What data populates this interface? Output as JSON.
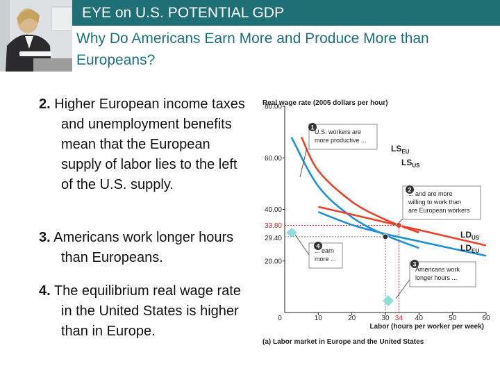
{
  "header": {
    "title": "EYE on U.S. POTENTIAL GDP"
  },
  "slide": {
    "subtitle": "Why Do Americans Earn More and Produce More than Europeans?",
    "points": [
      {
        "num": "2.",
        "text": "Higher European income taxes and unemployment benefits mean that the European supply of labor lies to the left of the U.S. supply."
      },
      {
        "num": "3.",
        "text": "Americans work longer hours than Europeans."
      },
      {
        "num": "4.",
        "text": "The equilibrium real wage rate in the United States is higher than in Europe."
      }
    ]
  },
  "chart_data": {
    "type": "line",
    "title": "(a) Labor market in Europe and the United States",
    "xlabel": "Labor (hours per worker per week)",
    "ylabel": "Real wage rate (2005 dollars per hour)",
    "xlim": [
      0,
      60
    ],
    "ylim": [
      0,
      80
    ],
    "x_ticks": [
      "0",
      "10",
      "20",
      "30",
      "40",
      "50",
      "60"
    ],
    "y_ticks": [
      "20.00",
      "40.00",
      "60.00",
      "80.00"
    ],
    "highlight_ticks": {
      "x": "34",
      "y_us": "33.80",
      "y_eu": "29.40"
    },
    "colors": {
      "us": "#e8432b",
      "eu": "#1e8fd8",
      "highlight": "#cc2222",
      "callout": "#333333"
    },
    "series": [
      {
        "name": "LS",
        "subscript": "EU",
        "color": "#e8432b",
        "points": [
          [
            5,
            68
          ],
          [
            10,
            55
          ],
          [
            20,
            43
          ],
          [
            30,
            36
          ],
          [
            40,
            31
          ]
        ]
      },
      {
        "name": "LS",
        "subscript": "US",
        "color": "#1e8fd8",
        "points": [
          [
            2,
            68
          ],
          [
            10,
            49
          ],
          [
            20,
            37
          ],
          [
            30,
            30
          ],
          [
            40,
            25
          ]
        ]
      },
      {
        "name": "LD",
        "subscript": "US",
        "color": "#e8432b",
        "points": [
          [
            10,
            41
          ],
          [
            20,
            38
          ],
          [
            30,
            35
          ],
          [
            35,
            33.5
          ],
          [
            60,
            26
          ]
        ]
      },
      {
        "name": "LD",
        "subscript": "EU",
        "color": "#1e8fd8",
        "points": [
          [
            10,
            39
          ],
          [
            20,
            34
          ],
          [
            30,
            30.5
          ],
          [
            35,
            29
          ],
          [
            60,
            22
          ]
        ]
      }
    ],
    "equilibria": [
      {
        "x": 34,
        "y": 33.8,
        "color": "#e8432b"
      },
      {
        "x": 30,
        "y": 29.4,
        "color": "#333333"
      }
    ],
    "annotations": [
      {
        "num": "1",
        "lines": [
          "U.S. workers are",
          "more productive ..."
        ]
      },
      {
        "num": "2",
        "lines": [
          "... and are more",
          "willing to work than",
          "are European workers"
        ]
      },
      {
        "num": "3",
        "lines": [
          "Americans work",
          "longer hours ..."
        ]
      },
      {
        "num": "4",
        "lines": [
          "... earn",
          "more ..."
        ]
      }
    ]
  }
}
